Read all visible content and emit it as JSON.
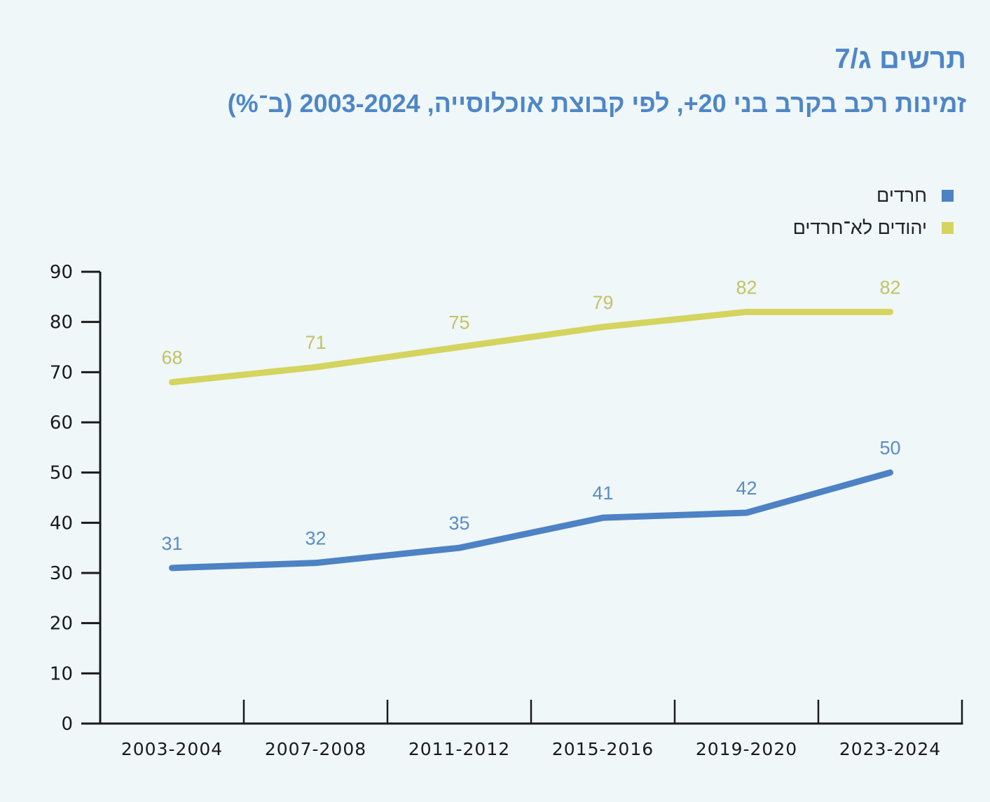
{
  "header": {
    "figure_number": "תרשים ג/7",
    "title": "זמינות רכב בקרב בני 20+, לפי קבוצת אוכלוסייה, 2003-2024 (ב־%)"
  },
  "chart_data": {
    "type": "line",
    "title": "זמינות רכב בקרב בני 20+, לפי קבוצת אוכלוסייה, 2003-2024 (ב־%)",
    "figure_number": "תרשים ג/7",
    "xlabel": "",
    "ylabel": "",
    "categories": [
      "2003-2004",
      "2007-2008",
      "2011-2012",
      "2015-2016",
      "2019-2020",
      "2023-2024"
    ],
    "ylim": [
      0,
      90
    ],
    "yticks": [
      0,
      10,
      20,
      30,
      40,
      50,
      60,
      70,
      80,
      90
    ],
    "grid": false,
    "legend_position": "top-right",
    "series": [
      {
        "name": "חרדים",
        "color": "#4d82c4",
        "label_color": "#5a8cc6",
        "values": [
          31,
          32,
          35,
          41,
          42,
          50
        ]
      },
      {
        "name": "יהודים לא־חרדים",
        "color": "#d4d45e",
        "label_color": "#c2c264",
        "values": [
          68,
          71,
          75,
          79,
          82,
          82
        ]
      }
    ]
  }
}
